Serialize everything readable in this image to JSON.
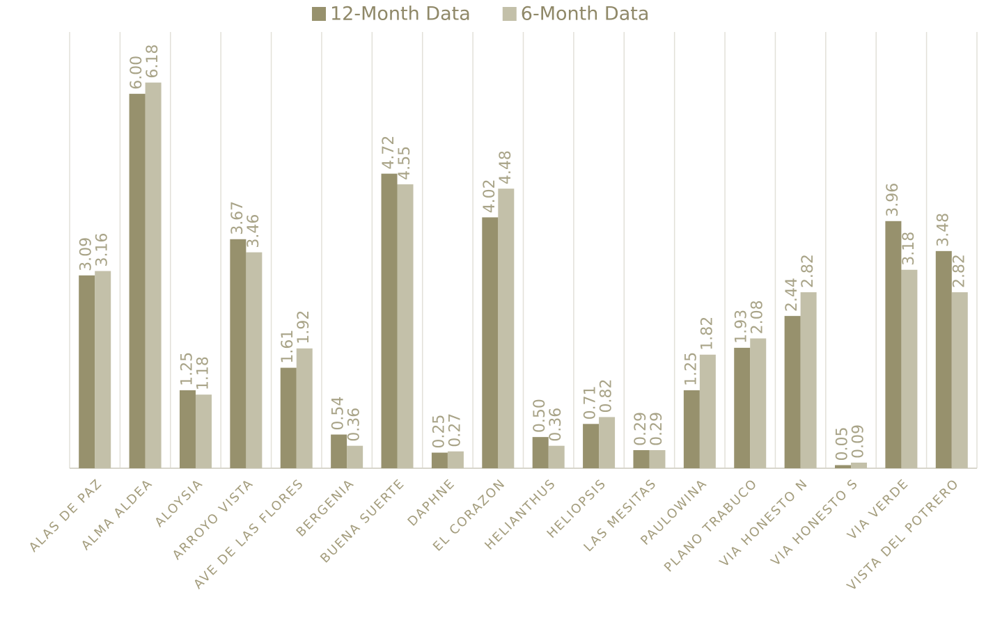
{
  "chart_data": {
    "type": "bar",
    "categories": [
      "ALAS DE PAZ",
      "ALMA ALDEA",
      "ALOYSIA",
      "ARROYO VISTA",
      "AVE DE LAS FLORES",
      "BERGENIA",
      "BUENA SUERTE",
      "DAPHNE",
      "EL CORAZON",
      "HELIANTHUS",
      "HELIOPSIS",
      "LAS MESITAS",
      "PAULOWINA",
      "PLANO TRABUCO",
      "VIA HONESTO N",
      "VIA HONESTO S",
      "VIA VERDE",
      "VISTA DEL POTRERO"
    ],
    "series": [
      {
        "name": "12-Month Data",
        "color": "#97916d",
        "values": [
          3.09,
          6.0,
          1.25,
          3.67,
          1.61,
          0.54,
          4.72,
          0.25,
          4.02,
          0.5,
          0.71,
          0.29,
          1.25,
          1.93,
          2.44,
          0.05,
          3.96,
          3.48
        ],
        "value_labels": [
          "3.09",
          "6.00",
          "1.25",
          "3.67",
          "1.61",
          "0.54",
          "4.72",
          "0.25",
          "4.02",
          "0.50",
          "0.71",
          "0.29",
          "1.25",
          "1.93",
          "2.44",
          "0.05",
          "3.96",
          "3.48"
        ]
      },
      {
        "name": "6-Month Data",
        "color": "#c3c0a9",
        "values": [
          3.16,
          6.18,
          1.18,
          3.46,
          1.92,
          0.36,
          4.55,
          0.27,
          4.48,
          0.36,
          0.82,
          0.29,
          1.82,
          2.08,
          2.82,
          0.09,
          3.18,
          2.82
        ],
        "value_labels": [
          "3.16",
          "6.18",
          "1.18",
          "3.46",
          "1.92",
          "0.36",
          "4.55",
          "0.27",
          "4.48",
          "0.36",
          "0.82",
          "0.29",
          "1.82",
          "2.08",
          "2.82",
          "0.09",
          "3.18",
          "2.82"
        ]
      }
    ],
    "legend": "top"
  }
}
